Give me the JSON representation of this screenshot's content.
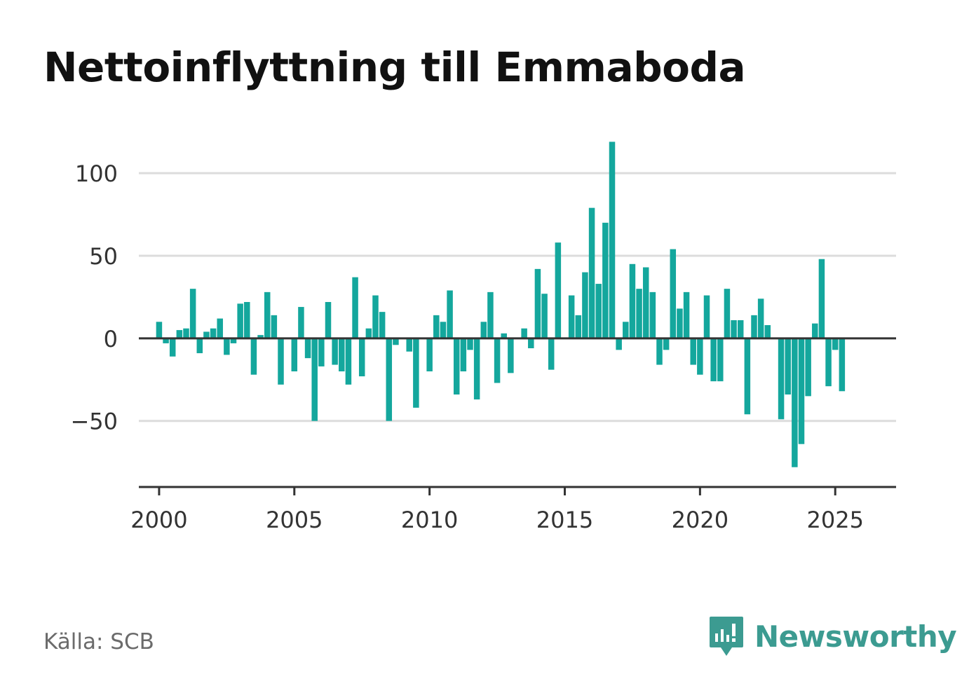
{
  "title": "Nettoinflyttning till Emmaboda",
  "source": "Källa: SCB",
  "brand": "Newsworthy",
  "colors": {
    "bar": "#14a79d",
    "brand": "#3c9b91",
    "grid": "#dcdcdc",
    "axis": "#333333"
  },
  "chart_data": {
    "type": "bar",
    "title": "Nettoinflyttning till Emmaboda",
    "xlabel": "",
    "ylabel": "",
    "xlim": [
      1999.25,
      2027.25
    ],
    "ylim": [
      -90,
      120
    ],
    "yticks": [
      100,
      50,
      0,
      -50
    ],
    "ytick_labels": [
      "100",
      "50",
      "0",
      "−50"
    ],
    "xticks": [
      2000,
      2005,
      2010,
      2015,
      2020,
      2025
    ],
    "xtick_labels": [
      "2000",
      "2005",
      "2010",
      "2015",
      "2020",
      "2025"
    ],
    "grid": true,
    "legend": "none",
    "frequency": "quarterly",
    "series": [
      {
        "start": "2000 Q1",
        "values": [
          10,
          -3,
          -11,
          5,
          6,
          30,
          -9,
          4,
          6,
          12,
          -10,
          -3,
          21,
          22,
          -22,
          2,
          28,
          14,
          -28,
          0,
          -20,
          19,
          -12,
          -50,
          -17,
          22,
          -16,
          -20,
          -28,
          37,
          -23,
          6,
          26,
          16,
          -50,
          -4,
          0,
          -8,
          -42,
          0,
          -20,
          14,
          10,
          29,
          -34,
          -20,
          -7,
          -37,
          10,
          28,
          -27,
          3,
          -21,
          0,
          6,
          -6,
          42,
          27,
          -19,
          58,
          0,
          26,
          14,
          40,
          79,
          33,
          70,
          119,
          -7,
          10,
          45,
          30,
          43,
          28,
          -16,
          -7,
          54,
          18,
          28,
          -16,
          -22,
          26,
          -26,
          -26,
          30,
          11,
          11,
          -46,
          14,
          24,
          8,
          0,
          -49,
          -34,
          -78,
          -64,
          -35,
          9,
          48,
          -29,
          -7,
          -32
        ]
      }
    ]
  }
}
